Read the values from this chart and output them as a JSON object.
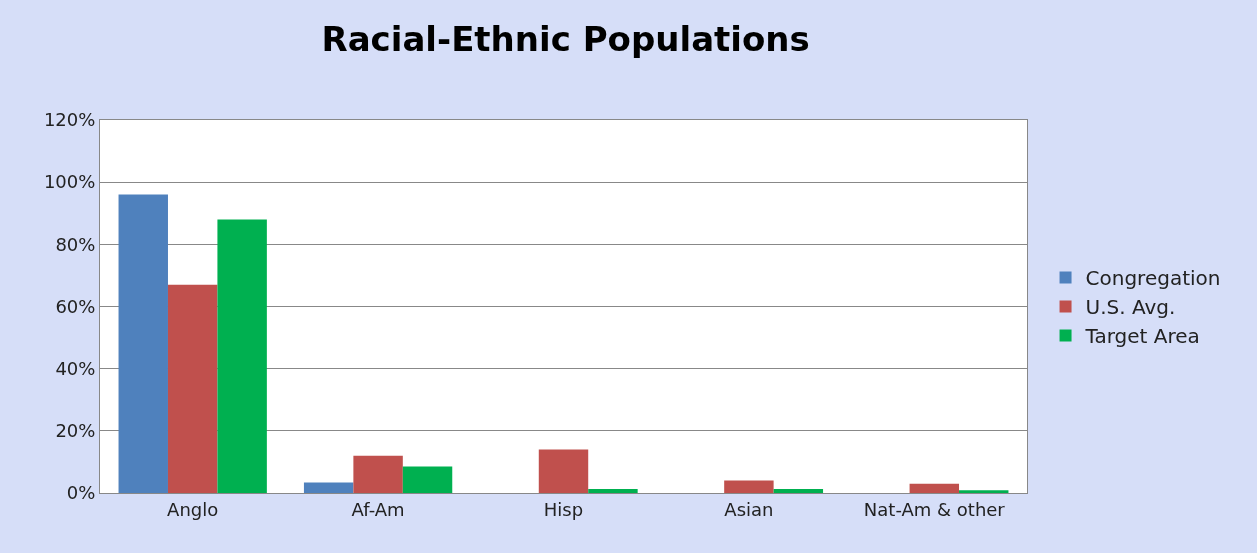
{
  "chart_data": {
    "type": "bar",
    "title": "Racial-Ethnic Populations",
    "categories": [
      "Anglo",
      "Af-Am",
      "Hisp",
      "Asian",
      "Nat-Am & other"
    ],
    "series": [
      {
        "name": "Congregation",
        "color": "#4f81bd",
        "values": [
          96,
          3.4,
          0,
          0,
          0
        ]
      },
      {
        "name": "U.S. Avg.",
        "color": "#c0504d",
        "values": [
          67,
          12,
          14,
          4,
          3
        ]
      },
      {
        "name": "Target Area",
        "color": "#00b050",
        "values": [
          88,
          8.5,
          1.3,
          1.3,
          0.9
        ]
      }
    ],
    "ylim": [
      0,
      120
    ],
    "yticks": [
      {
        "value": 0,
        "label": "0%"
      },
      {
        "value": 20,
        "label": "20%"
      },
      {
        "value": 40,
        "label": "40%"
      },
      {
        "value": 60,
        "label": "60%"
      },
      {
        "value": 80,
        "label": "80%"
      },
      {
        "value": 100,
        "label": "100%"
      },
      {
        "value": 120,
        "label": "120%"
      }
    ],
    "grid": "y",
    "legend": "right"
  }
}
